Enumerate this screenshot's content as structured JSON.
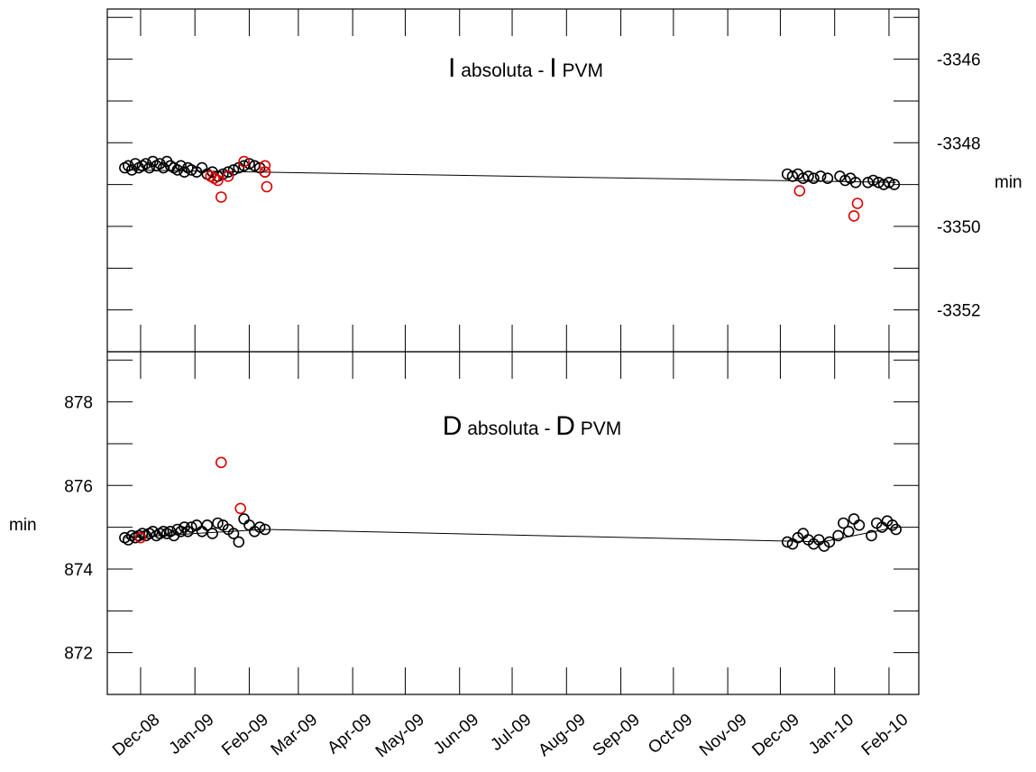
{
  "chart_data": [
    {
      "type": "scatter",
      "panel": "top",
      "title_parts": [
        "I",
        " absoluta - ",
        "I",
        " PVM"
      ],
      "ylabel": "min",
      "y_axis_side": "right",
      "ylim": [
        -3353.0,
        -3344.8
      ],
      "y_inverted": true,
      "yticks": [
        -3346,
        -3348,
        -3350,
        -3352
      ],
      "ytick_labels": [
        "-3346",
        "-3348",
        "-3350",
        "-3352"
      ],
      "trend_line": [
        [
          "2008-11-22",
          -3348.65
        ],
        [
          "2010-02-05",
          -3348.95
        ]
      ],
      "series": [
        {
          "color": "#000000",
          "points": [
            [
              "2008-11-22",
              -3348.6
            ],
            [
              "2008-11-24",
              -3348.55
            ],
            [
              "2008-11-26",
              -3348.65
            ],
            [
              "2008-11-28",
              -3348.5
            ],
            [
              "2008-11-30",
              -3348.6
            ],
            [
              "2008-12-02",
              -3348.55
            ],
            [
              "2008-12-04",
              -3348.5
            ],
            [
              "2008-12-06",
              -3348.6
            ],
            [
              "2008-12-08",
              -3348.45
            ],
            [
              "2008-12-10",
              -3348.55
            ],
            [
              "2008-12-12",
              -3348.5
            ],
            [
              "2008-12-14",
              -3348.6
            ],
            [
              "2008-12-16",
              -3348.45
            ],
            [
              "2008-12-18",
              -3348.55
            ],
            [
              "2008-12-20",
              -3348.6
            ],
            [
              "2008-12-22",
              -3348.65
            ],
            [
              "2008-12-24",
              -3348.55
            ],
            [
              "2008-12-26",
              -3348.7
            ],
            [
              "2008-12-28",
              -3348.6
            ],
            [
              "2008-12-30",
              -3348.65
            ],
            [
              "2009-01-02",
              -3348.7
            ],
            [
              "2009-01-05",
              -3348.6
            ],
            [
              "2009-01-08",
              -3348.75
            ],
            [
              "2009-01-11",
              -3348.7
            ],
            [
              "2009-01-14",
              -3348.8
            ],
            [
              "2009-01-17",
              -3348.75
            ],
            [
              "2009-01-20",
              -3348.7
            ],
            [
              "2009-01-23",
              -3348.65
            ],
            [
              "2009-01-26",
              -3348.6
            ],
            [
              "2009-01-29",
              -3348.55
            ],
            [
              "2009-02-01",
              -3348.5
            ],
            [
              "2009-02-04",
              -3348.55
            ],
            [
              "2009-02-07",
              -3348.6
            ],
            [
              "2009-02-10",
              -3348.7
            ],
            [
              "2009-12-05",
              -3348.75
            ],
            [
              "2009-12-08",
              -3348.8
            ],
            [
              "2009-12-11",
              -3348.75
            ],
            [
              "2009-12-14",
              -3348.85
            ],
            [
              "2009-12-17",
              -3348.8
            ],
            [
              "2009-12-20",
              -3348.85
            ],
            [
              "2009-12-24",
              -3348.8
            ],
            [
              "2009-12-28",
              -3348.85
            ],
            [
              "2010-01-04",
              -3348.8
            ],
            [
              "2010-01-07",
              -3348.9
            ],
            [
              "2010-01-10",
              -3348.85
            ],
            [
              "2010-01-13",
              -3348.95
            ],
            [
              "2010-01-20",
              -3348.95
            ],
            [
              "2010-01-23",
              -3348.9
            ],
            [
              "2010-01-26",
              -3348.95
            ],
            [
              "2010-01-29",
              -3349.0
            ],
            [
              "2010-02-01",
              -3348.95
            ],
            [
              "2010-02-04",
              -3349.0
            ]
          ]
        },
        {
          "color": "#e00000",
          "points": [
            [
              "2009-01-10",
              -3348.8
            ],
            [
              "2009-01-12",
              -3348.85
            ],
            [
              "2009-01-14",
              -3348.9
            ],
            [
              "2009-01-16",
              -3349.3
            ],
            [
              "2009-01-20",
              -3348.8
            ],
            [
              "2009-01-29",
              -3348.45
            ],
            [
              "2009-02-10",
              -3348.55
            ],
            [
              "2009-02-10",
              -3348.7
            ],
            [
              "2009-02-11",
              -3349.05
            ],
            [
              "2009-12-12",
              -3349.15
            ],
            [
              "2010-01-12",
              -3349.75
            ],
            [
              "2010-01-14",
              -3349.45
            ]
          ]
        }
      ]
    },
    {
      "type": "scatter",
      "panel": "bottom",
      "title_parts": [
        "D",
        " absoluta - ",
        "D",
        " PVM"
      ],
      "ylabel": "min",
      "y_axis_side": "left",
      "ylim": [
        871.0,
        879.2
      ],
      "yticks": [
        872,
        874,
        876,
        878
      ],
      "ytick_labels": [
        "872",
        "874",
        "876",
        "878"
      ],
      "trend_line": [
        [
          "2008-11-22",
          874.75
        ],
        [
          "2009-02-10",
          874.95
        ],
        [
          "2009-12-25",
          874.65
        ],
        [
          "2010-02-05",
          875.0
        ]
      ],
      "series": [
        {
          "color": "#000000",
          "points": [
            [
              "2008-11-22",
              874.75
            ],
            [
              "2008-11-24",
              874.7
            ],
            [
              "2008-11-26",
              874.8
            ],
            [
              "2008-11-28",
              874.75
            ],
            [
              "2008-11-30",
              874.8
            ],
            [
              "2008-12-02",
              874.85
            ],
            [
              "2008-12-04",
              874.8
            ],
            [
              "2008-12-06",
              874.85
            ],
            [
              "2008-12-08",
              874.9
            ],
            [
              "2008-12-10",
              874.8
            ],
            [
              "2008-12-12",
              874.85
            ],
            [
              "2008-12-14",
              874.9
            ],
            [
              "2008-12-16",
              874.85
            ],
            [
              "2008-12-18",
              874.9
            ],
            [
              "2008-12-20",
              874.8
            ],
            [
              "2008-12-22",
              874.95
            ],
            [
              "2008-12-24",
              874.9
            ],
            [
              "2008-12-26",
              875.0
            ],
            [
              "2008-12-28",
              874.9
            ],
            [
              "2008-12-30",
              875.0
            ],
            [
              "2009-01-02",
              875.05
            ],
            [
              "2009-01-05",
              874.9
            ],
            [
              "2009-01-08",
              875.05
            ],
            [
              "2009-01-11",
              874.85
            ],
            [
              "2009-01-14",
              875.1
            ],
            [
              "2009-01-17",
              875.05
            ],
            [
              "2009-01-20",
              874.95
            ],
            [
              "2009-01-23",
              874.85
            ],
            [
              "2009-01-26",
              874.65
            ],
            [
              "2009-01-29",
              875.2
            ],
            [
              "2009-02-01",
              875.05
            ],
            [
              "2009-02-04",
              874.9
            ],
            [
              "2009-02-07",
              875.0
            ],
            [
              "2009-02-10",
              874.95
            ],
            [
              "2009-12-05",
              874.65
            ],
            [
              "2009-12-08",
              874.6
            ],
            [
              "2009-12-11",
              874.75
            ],
            [
              "2009-12-14",
              874.85
            ],
            [
              "2009-12-17",
              874.7
            ],
            [
              "2009-12-20",
              874.6
            ],
            [
              "2009-12-23",
              874.7
            ],
            [
              "2009-12-26",
              874.55
            ],
            [
              "2009-12-29",
              874.65
            ],
            [
              "2010-01-03",
              874.8
            ],
            [
              "2010-01-06",
              875.1
            ],
            [
              "2010-01-09",
              874.9
            ],
            [
              "2010-01-12",
              875.2
            ],
            [
              "2010-01-15",
              875.05
            ],
            [
              "2010-01-22",
              874.8
            ],
            [
              "2010-01-25",
              875.1
            ],
            [
              "2010-01-28",
              875.0
            ],
            [
              "2010-01-31",
              875.15
            ],
            [
              "2010-02-03",
              875.05
            ],
            [
              "2010-02-05",
              874.95
            ]
          ]
        },
        {
          "color": "#e00000",
          "points": [
            [
              "2008-12-01",
              874.75
            ],
            [
              "2009-01-16",
              876.55
            ],
            [
              "2009-01-27",
              875.45
            ]
          ]
        }
      ]
    }
  ],
  "x_axis": {
    "ticks": [
      "2008-12-01",
      "2009-01-01",
      "2009-02-01",
      "2009-03-01",
      "2009-04-01",
      "2009-05-01",
      "2009-06-01",
      "2009-07-01",
      "2009-08-01",
      "2009-09-01",
      "2009-10-01",
      "2009-11-01",
      "2009-12-01",
      "2010-01-01",
      "2010-02-01"
    ],
    "labels": [
      "Dec-08",
      "Jan-09",
      "Feb-09",
      "Mar-09",
      "Apr-09",
      "May-09",
      "Jun-09",
      "Jul-09",
      "Aug-09",
      "Sep-09",
      "Oct-09",
      "Nov-09",
      "Dec-09",
      "Jan-10",
      "Feb-10"
    ],
    "range": [
      "2008-11-12",
      "2010-02-18"
    ]
  }
}
